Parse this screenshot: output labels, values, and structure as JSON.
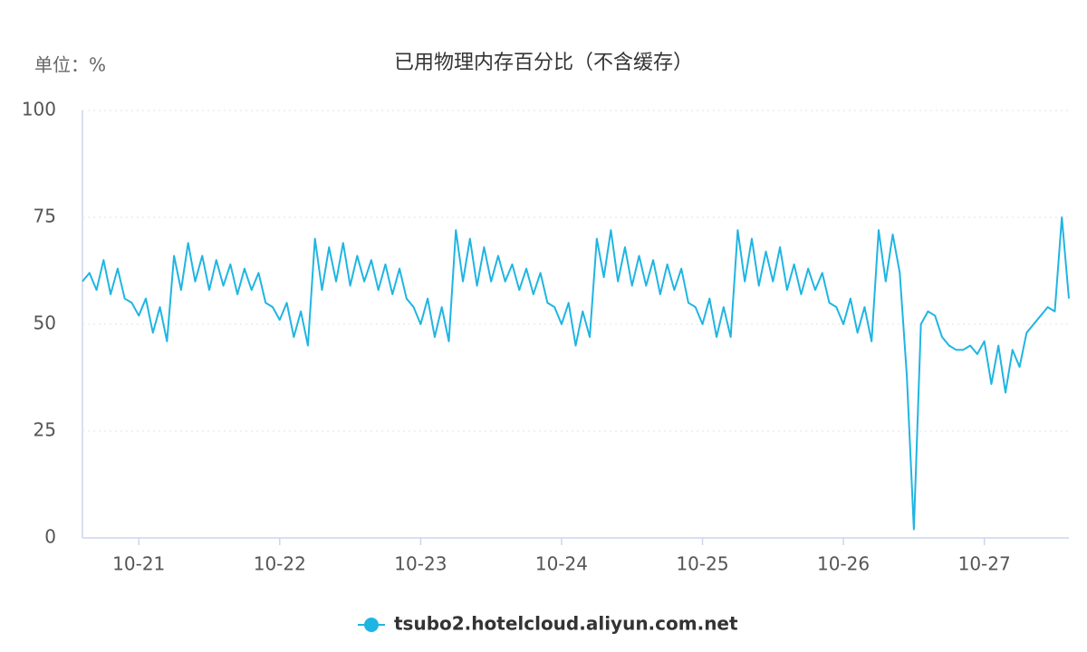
{
  "chart_data": {
    "type": "line",
    "title": "已用物理内存百分比（不含缓存）",
    "unit_label": "单位：%",
    "x": [
      20.6,
      20.65,
      20.7,
      20.75,
      20.8,
      20.85,
      20.9,
      20.95,
      21.0,
      21.05,
      21.1,
      21.15,
      21.2,
      21.25,
      21.3,
      21.35,
      21.4,
      21.45,
      21.5,
      21.55,
      21.6,
      21.65,
      21.7,
      21.75,
      21.8,
      21.85,
      21.9,
      21.95,
      22.0,
      22.05,
      22.1,
      22.15,
      22.2,
      22.25,
      22.3,
      22.35,
      22.4,
      22.45,
      22.5,
      22.55,
      22.6,
      22.65,
      22.7,
      22.75,
      22.8,
      22.85,
      22.9,
      22.95,
      23.0,
      23.05,
      23.1,
      23.15,
      23.2,
      23.25,
      23.3,
      23.35,
      23.4,
      23.45,
      23.5,
      23.55,
      23.6,
      23.65,
      23.7,
      23.75,
      23.8,
      23.85,
      23.9,
      23.95,
      24.0,
      24.05,
      24.1,
      24.15,
      24.2,
      24.25,
      24.3,
      24.35,
      24.4,
      24.45,
      24.5,
      24.55,
      24.6,
      24.65,
      24.7,
      24.75,
      24.8,
      24.85,
      24.9,
      24.95,
      25.0,
      25.05,
      25.1,
      25.15,
      25.2,
      25.25,
      25.3,
      25.35,
      25.4,
      25.45,
      25.5,
      25.55,
      25.6,
      25.65,
      25.7,
      25.75,
      25.8,
      25.85,
      25.9,
      25.95,
      26.0,
      26.05,
      26.1,
      26.15,
      26.2,
      26.25,
      26.3,
      26.35,
      26.4,
      26.45,
      26.5,
      26.55,
      26.6,
      26.65,
      26.7,
      26.75,
      26.8,
      26.85,
      26.9,
      26.95,
      27.0,
      27.05,
      27.1,
      27.15,
      27.2,
      27.25,
      27.3,
      27.35,
      27.4,
      27.45,
      27.5,
      27.55,
      27.6
    ],
    "series": [
      {
        "name": "tsubo2.hotelcloud.aliyun.com.net",
        "color": "#1fb5e3",
        "values": [
          60,
          62,
          58,
          65,
          57,
          63,
          56,
          55,
          52,
          56,
          48,
          54,
          46,
          66,
          58,
          69,
          60,
          66,
          58,
          65,
          59,
          64,
          57,
          63,
          58,
          62,
          55,
          54,
          51,
          55,
          47,
          53,
          45,
          70,
          58,
          68,
          60,
          69,
          59,
          66,
          60,
          65,
          58,
          64,
          57,
          63,
          56,
          54,
          50,
          56,
          47,
          54,
          46,
          72,
          60,
          70,
          59,
          68,
          60,
          66,
          60,
          64,
          58,
          63,
          57,
          62,
          55,
          54,
          50,
          55,
          45,
          53,
          47,
          70,
          61,
          72,
          60,
          68,
          59,
          66,
          59,
          65,
          57,
          64,
          58,
          63,
          55,
          54,
          50,
          56,
          47,
          54,
          47,
          72,
          60,
          70,
          59,
          67,
          60,
          68,
          58,
          64,
          57,
          63,
          58,
          62,
          55,
          54,
          50,
          56,
          48,
          54,
          46,
          72,
          60,
          71,
          62,
          38,
          2,
          50,
          53,
          52,
          47,
          45,
          44,
          44,
          45,
          43,
          46,
          36,
          45,
          34,
          44,
          40,
          48,
          50,
          52,
          54,
          53,
          75,
          56
        ]
      }
    ],
    "xlim": [
      20.6,
      27.6
    ],
    "xticks": [
      {
        "value": 21,
        "label": "10-21"
      },
      {
        "value": 22,
        "label": "10-22"
      },
      {
        "value": 23,
        "label": "10-23"
      },
      {
        "value": 24,
        "label": "10-24"
      },
      {
        "value": 25,
        "label": "10-25"
      },
      {
        "value": 26,
        "label": "10-26"
      },
      {
        "value": 27,
        "label": "10-27"
      }
    ],
    "ylim": [
      0,
      100
    ],
    "yticks": [
      0,
      25,
      50,
      75,
      100
    ],
    "grid": true,
    "legend": "bottom"
  }
}
